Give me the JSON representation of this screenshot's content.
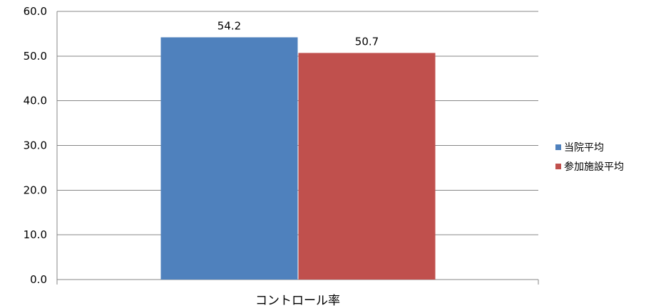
{
  "chart_data": {
    "type": "bar",
    "title": "",
    "xlabel": "",
    "ylabel": "",
    "categories": [
      "コントロール率"
    ],
    "series": [
      {
        "name": "当院平均",
        "values": [
          54.2
        ],
        "color": "#4f81bd",
        "label": "54.2"
      },
      {
        "name": "参加施設平均",
        "values": [
          50.7
        ],
        "color": "#c0504d",
        "label": "50.7"
      }
    ],
    "ylim": [
      0,
      60
    ],
    "yticks": [
      "0.0",
      "10.0",
      "20.0",
      "30.0",
      "40.0",
      "50.0",
      "60.0"
    ],
    "grid": true,
    "legend_position": "right"
  }
}
